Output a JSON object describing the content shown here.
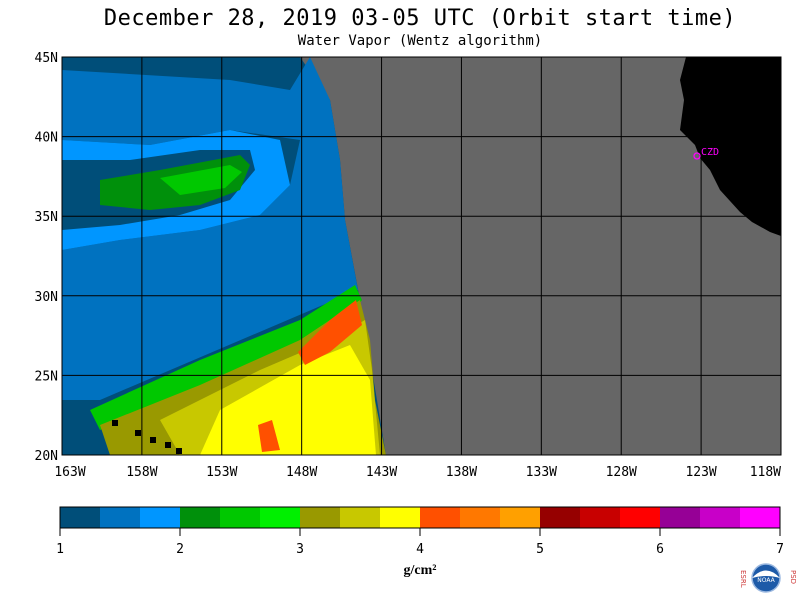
{
  "header": {
    "title": "December 28, 2019  03-05 UTC  (Orbit start time)",
    "subtitle": "Water Vapor (Wentz algorithm)"
  },
  "map": {
    "lat_labels": [
      "45N",
      "40N",
      "35N",
      "30N",
      "25N",
      "20N"
    ],
    "lon_labels": [
      "163W",
      "158W",
      "153W",
      "148W",
      "143W",
      "138W",
      "133W",
      "128W",
      "123W",
      "118W"
    ],
    "station_label": "CZD",
    "colors": {
      "no_data": "#666666",
      "land": "#000000",
      "grid": "#000000",
      "station": "#ff00ff"
    }
  },
  "colorbar": {
    "ticks": [
      "1",
      "2",
      "3",
      "4",
      "5",
      "6",
      "7"
    ],
    "units": "g/cm²",
    "colors": [
      "#004e79",
      "#0072c0",
      "#0096ff",
      "#00900b",
      "#00c800",
      "#00f000",
      "#999900",
      "#c8c800",
      "#ffff00",
      "#ff5000",
      "#ff7800",
      "#ffa000",
      "#960000",
      "#c80000",
      "#ff0000",
      "#960096",
      "#c800c8",
      "#ff00ff"
    ]
  },
  "footer": {
    "logo_left": "ESRL",
    "logo_center": "NOAA",
    "logo_right": "PSD"
  }
}
